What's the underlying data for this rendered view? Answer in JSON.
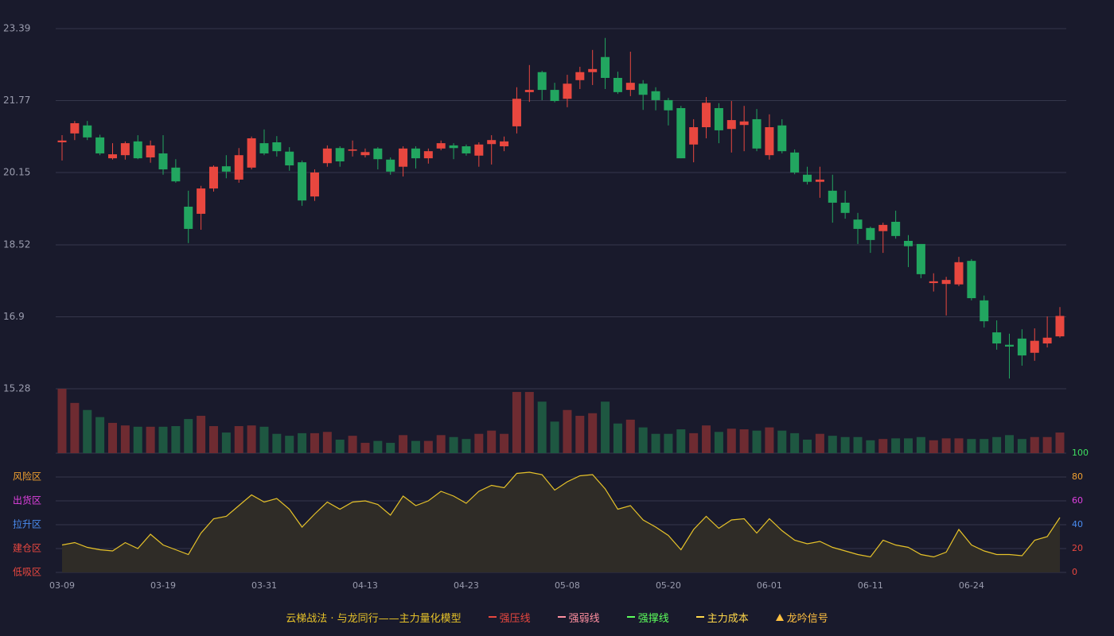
{
  "chart_data": {
    "type": "candlestick",
    "categories": [
      "03-09",
      null,
      null,
      null,
      null,
      null,
      null,
      null,
      "03-19",
      null,
      null,
      null,
      null,
      null,
      null,
      null,
      "03-31",
      null,
      null,
      null,
      null,
      null,
      null,
      null,
      "04-13",
      null,
      null,
      null,
      null,
      null,
      null,
      null,
      "04-23",
      null,
      null,
      null,
      null,
      null,
      null,
      null,
      "05-08",
      null,
      null,
      null,
      null,
      null,
      null,
      null,
      "05-20",
      null,
      null,
      null,
      null,
      null,
      null,
      null,
      "06-01",
      null,
      null,
      null,
      null,
      null,
      null,
      null,
      "06-11",
      null,
      null,
      null,
      null,
      null,
      null,
      null,
      "06-24",
      null,
      null,
      null,
      null,
      null,
      null,
      null
    ],
    "open": [
      20.83,
      21.03,
      21.21,
      20.94,
      20.47,
      20.54,
      20.85,
      20.49,
      20.58,
      20.26,
      19.38,
      19.22,
      19.79,
      20.29,
      19.99,
      20.26,
      20.81,
      20.83,
      20.62,
      20.38,
      19.61,
      20.36,
      20.7,
      20.64,
      20.54,
      20.69,
      20.44,
      20.28,
      20.69,
      20.47,
      20.69,
      20.76,
      20.74,
      20.53,
      20.79,
      20.74,
      21.19,
      21.96,
      22.41,
      22.01,
      21.81,
      22.23,
      22.41,
      22.75,
      22.28,
      22.01,
      22.15,
      21.98,
      21.78,
      21.6,
      20.78,
      21.17,
      21.6,
      21.13,
      21.22,
      21.35,
      20.54,
      21.21,
      20.6,
      20.1,
      19.94,
      19.74,
      19.47,
      19.09,
      18.9,
      18.83,
      19.04,
      18.61,
      18.54,
      17.66,
      17.64,
      17.63,
      18.16,
      17.27,
      16.55,
      16.27,
      16.41,
      16.09,
      16.3,
      16.46
    ],
    "high": [
      20.99,
      21.31,
      21.31,
      21.0,
      20.81,
      20.85,
      20.99,
      20.87,
      20.99,
      20.45,
      19.74,
      19.85,
      20.31,
      20.54,
      20.7,
      20.96,
      21.12,
      20.97,
      20.72,
      20.42,
      20.22,
      20.76,
      20.74,
      20.87,
      20.69,
      20.72,
      20.49,
      20.74,
      20.74,
      20.69,
      20.87,
      20.81,
      20.78,
      20.83,
      20.99,
      20.96,
      22.07,
      22.57,
      22.44,
      22.17,
      22.35,
      22.53,
      22.91,
      23.18,
      22.42,
      22.87,
      22.23,
      22.07,
      21.83,
      21.65,
      21.35,
      21.85,
      21.71,
      21.76,
      21.65,
      21.58,
      21.46,
      21.35,
      20.67,
      20.28,
      20.28,
      20.1,
      19.74,
      19.24,
      18.93,
      19.02,
      19.29,
      18.74,
      18.54,
      17.88,
      17.8,
      18.25,
      18.2,
      17.38,
      16.82,
      16.52,
      16.62,
      16.64,
      16.91,
      17.12
    ],
    "low": [
      20.42,
      20.88,
      20.88,
      20.54,
      20.44,
      20.44,
      20.45,
      20.37,
      20.1,
      19.92,
      18.56,
      18.86,
      19.72,
      20.02,
      19.92,
      20.22,
      20.54,
      20.51,
      20.19,
      19.4,
      19.51,
      20.28,
      20.28,
      20.51,
      20.49,
      20.22,
      20.1,
      20.06,
      20.24,
      20.35,
      20.65,
      20.45,
      20.53,
      20.28,
      20.33,
      20.63,
      21.03,
      21.74,
      21.78,
      21.73,
      21.62,
      22.03,
      22.12,
      22.03,
      21.92,
      21.87,
      21.56,
      21.55,
      21.21,
      20.47,
      20.38,
      20.92,
      20.81,
      20.6,
      20.63,
      20.63,
      20.44,
      20.58,
      20.11,
      19.88,
      19.58,
      19.02,
      19.11,
      18.54,
      18.34,
      18.34,
      18.66,
      18.02,
      17.77,
      17.47,
      16.93,
      17.59,
      17.27,
      16.66,
      16.16,
      15.51,
      15.8,
      15.91,
      16.21,
      16.43
    ],
    "close": [
      20.87,
      21.26,
      20.94,
      20.58,
      20.56,
      20.81,
      20.47,
      20.76,
      20.22,
      19.95,
      18.88,
      19.79,
      20.28,
      20.17,
      20.54,
      20.92,
      20.58,
      20.63,
      20.31,
      19.52,
      20.15,
      20.69,
      20.4,
      20.67,
      20.61,
      20.45,
      20.17,
      20.69,
      20.47,
      20.63,
      20.81,
      20.7,
      20.58,
      20.78,
      20.88,
      20.85,
      21.81,
      22.01,
      22.01,
      21.76,
      22.15,
      22.41,
      22.48,
      22.28,
      21.96,
      22.17,
      21.9,
      21.78,
      21.55,
      20.47,
      21.17,
      21.72,
      21.1,
      21.33,
      21.3,
      20.69,
      21.17,
      20.63,
      20.15,
      19.94,
      19.99,
      19.47,
      19.24,
      18.88,
      18.63,
      18.97,
      18.72,
      18.49,
      17.86,
      17.7,
      17.73,
      18.13,
      17.32,
      16.8,
      16.3,
      16.23,
      16.03,
      16.36,
      16.43,
      16.92
    ],
    "up_color": "#e8473f",
    "down_color": "#22a660",
    "ylim": [
      15.28,
      23.39
    ],
    "yticks": [
      15.28,
      16.9,
      18.52,
      20.15,
      21.77,
      23.39
    ],
    "grid": true,
    "volume": {
      "values": [
        100,
        78,
        67,
        56,
        47,
        43,
        41,
        41,
        41,
        42,
        53,
        58,
        42,
        32,
        42,
        43,
        41,
        30,
        27,
        31,
        31,
        33,
        21,
        27,
        16,
        19,
        16,
        28,
        19,
        19,
        28,
        25,
        22,
        30,
        35,
        30,
        95,
        95,
        80,
        49,
        67,
        58,
        62,
        80,
        46,
        52,
        40,
        30,
        30,
        37,
        31,
        43,
        33,
        38,
        37,
        35,
        40,
        35,
        31,
        21,
        30,
        27,
        25,
        25,
        20,
        22,
        23,
        23,
        25,
        20,
        23,
        23,
        22,
        22,
        25,
        28,
        22,
        25,
        25,
        32
      ],
      "ylim": [
        0,
        100
      ],
      "up_color": "#6e2b31",
      "down_color": "#1e5741"
    },
    "indicator": {
      "values": [
        23,
        25,
        21,
        19,
        18,
        25,
        20,
        32,
        23,
        19,
        15,
        33,
        45,
        47,
        56,
        65,
        59,
        62,
        53,
        38,
        49,
        59,
        53,
        59,
        60,
        57,
        48,
        64,
        56,
        60,
        68,
        64,
        58,
        68,
        73,
        71,
        83,
        84,
        82,
        69,
        76,
        81,
        82,
        70,
        53,
        56,
        44,
        38,
        31,
        19,
        36,
        47,
        37,
        44,
        45,
        33,
        45,
        35,
        27,
        24,
        26,
        21,
        18,
        15,
        13,
        27,
        23,
        21,
        15,
        13,
        17,
        36,
        23,
        18,
        15,
        15,
        14,
        27,
        30,
        46
      ],
      "color": "#e6c229",
      "ylim": [
        0,
        100
      ],
      "yticks": [
        0,
        20,
        40,
        60,
        80,
        100
      ],
      "tick_colors": [
        "#e8473f",
        "#e8473f",
        "#4a8cf0",
        "#e040e0",
        "#f0a030",
        "#3ee060"
      ],
      "zones": [
        {
          "label": "低吸区",
          "value": 0,
          "color": "#e8473f"
        },
        {
          "label": "建仓区",
          "value": 20,
          "color": "#e8473f"
        },
        {
          "label": "拉升区",
          "value": 40,
          "color": "#4a8cf0"
        },
        {
          "label": "出货区",
          "value": 60,
          "color": "#e040e0"
        },
        {
          "label": "风险区",
          "value": 80,
          "color": "#f0a030"
        }
      ]
    },
    "legend": {
      "title": "云梯战法 · 与龙同行——主力量化模型",
      "items": [
        {
          "name": "强压线",
          "color": "#e8473f",
          "style": "solid"
        },
        {
          "name": "强弱线",
          "color": "#ff8fa0",
          "style": "dashed"
        },
        {
          "name": "强撑线",
          "color": "#5cff5c",
          "style": "solid"
        },
        {
          "name": "主力成本",
          "color": "#ffd84a",
          "style": "dashed"
        },
        {
          "name": "龙吟信号",
          "color": "#ffc040",
          "style": "triangle"
        }
      ]
    }
  }
}
